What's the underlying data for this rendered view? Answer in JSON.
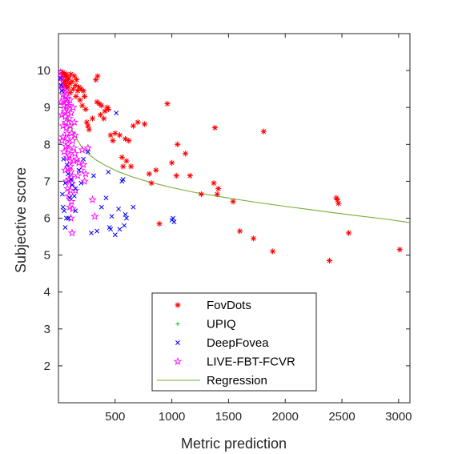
{
  "chart_data": {
    "type": "scatter",
    "title": "",
    "xlabel": "Metric prediction",
    "ylabel": "Subjective score",
    "xlim": [
      0,
      3100
    ],
    "ylim": [
      1,
      11
    ],
    "xticks": [
      500,
      1000,
      1500,
      2000,
      2500,
      3000
    ],
    "yticks": [
      2,
      3,
      4,
      5,
      6,
      7,
      8,
      9,
      10
    ],
    "grid": false,
    "legend_position": "bottom-center",
    "series": [
      {
        "name": "FovDots",
        "marker": "asterisk",
        "color": "#ff0000",
        "points": [
          [
            40,
            9.95
          ],
          [
            50,
            9.9
          ],
          [
            55,
            9.7
          ],
          [
            60,
            9.85
          ],
          [
            65,
            9.6
          ],
          [
            70,
            9.9
          ],
          [
            80,
            9.75
          ],
          [
            85,
            9.55
          ],
          [
            90,
            9.8
          ],
          [
            100,
            9.65
          ],
          [
            105,
            9.4
          ],
          [
            110,
            9.9
          ],
          [
            120,
            9.7
          ],
          [
            130,
            9.5
          ],
          [
            140,
            9.85
          ],
          [
            150,
            9.6
          ],
          [
            155,
            9.3
          ],
          [
            160,
            9.75
          ],
          [
            170,
            9.45
          ],
          [
            180,
            9.55
          ],
          [
            190,
            9.2
          ],
          [
            200,
            9.5
          ],
          [
            210,
            9.05
          ],
          [
            220,
            9.45
          ],
          [
            230,
            9.3
          ],
          [
            240,
            8.95
          ],
          [
            250,
            8.6
          ],
          [
            260,
            8.5
          ],
          [
            270,
            8.4
          ],
          [
            300,
            8.7
          ],
          [
            330,
            9.75
          ],
          [
            340,
            9.15
          ],
          [
            345,
            9.85
          ],
          [
            360,
            9.1
          ],
          [
            370,
            8.8
          ],
          [
            380,
            9.05
          ],
          [
            400,
            8.7
          ],
          [
            410,
            8.9
          ],
          [
            430,
            9.0
          ],
          [
            440,
            8.95
          ],
          [
            460,
            8.25
          ],
          [
            480,
            8.1
          ],
          [
            500,
            8.3
          ],
          [
            540,
            8.25
          ],
          [
            560,
            7.65
          ],
          [
            570,
            7.4
          ],
          [
            590,
            8.15
          ],
          [
            600,
            7.55
          ],
          [
            620,
            8.1
          ],
          [
            640,
            7.4
          ],
          [
            660,
            8.5
          ],
          [
            700,
            8.6
          ],
          [
            760,
            8.55
          ],
          [
            800,
            7.2
          ],
          [
            820,
            6.95
          ],
          [
            860,
            7.3
          ],
          [
            890,
            5.85
          ],
          [
            960,
            9.1
          ],
          [
            1000,
            7.5
          ],
          [
            1040,
            7.15
          ],
          [
            1050,
            8.0
          ],
          [
            1120,
            7.75
          ],
          [
            1160,
            7.15
          ],
          [
            1260,
            6.65
          ],
          [
            1370,
            6.95
          ],
          [
            1380,
            8.45
          ],
          [
            1400,
            6.65
          ],
          [
            1410,
            6.8
          ],
          [
            1540,
            6.45
          ],
          [
            1600,
            5.65
          ],
          [
            1720,
            5.45
          ],
          [
            1810,
            8.35
          ],
          [
            1890,
            5.1
          ],
          [
            2390,
            4.85
          ],
          [
            2450,
            6.55
          ],
          [
            2470,
            6.4
          ],
          [
            2560,
            5.6
          ],
          [
            3010,
            5.15
          ],
          [
            2460,
            6.5
          ]
        ]
      },
      {
        "name": "UPIQ",
        "marker": "plus",
        "color": "#00cc00",
        "points": []
      },
      {
        "name": "DeepFovea",
        "marker": "x",
        "color": "#0000ff",
        "points": [
          [
            20,
            9.8
          ],
          [
            25,
            9.6
          ],
          [
            30,
            9.45
          ],
          [
            35,
            6.65
          ],
          [
            45,
            7.6
          ],
          [
            50,
            6.2
          ],
          [
            60,
            6.95
          ],
          [
            70,
            6.0
          ],
          [
            75,
            7.45
          ],
          [
            90,
            6.0
          ],
          [
            100,
            6.55
          ],
          [
            110,
            7.05
          ],
          [
            120,
            6.9
          ],
          [
            140,
            6.6
          ],
          [
            150,
            6.2
          ],
          [
            180,
            7.3
          ],
          [
            200,
            6.95
          ],
          [
            220,
            7.6
          ],
          [
            260,
            7.8
          ],
          [
            290,
            5.6
          ],
          [
            310,
            7.15
          ],
          [
            340,
            5.65
          ],
          [
            380,
            6.3
          ],
          [
            420,
            6.55
          ],
          [
            440,
            7.25
          ],
          [
            450,
            5.75
          ],
          [
            460,
            5.7
          ],
          [
            470,
            6.05
          ],
          [
            500,
            5.55
          ],
          [
            510,
            8.85
          ],
          [
            530,
            6.25
          ],
          [
            540,
            5.7
          ],
          [
            560,
            7.0
          ],
          [
            570,
            7.05
          ],
          [
            580,
            5.8
          ],
          [
            590,
            6.1
          ],
          [
            600,
            6.0
          ],
          [
            660,
            6.3
          ],
          [
            1000,
            5.95
          ],
          [
            1010,
            6.0
          ],
          [
            1020,
            5.9
          ],
          [
            150,
            6.8
          ],
          [
            60,
            5.75
          ],
          [
            40,
            6.3
          ],
          [
            85,
            7.2
          ]
        ]
      },
      {
        "name": "LIVE-FBT-FCVR",
        "marker": "pentagram",
        "color": "#ff00ff",
        "points": [
          [
            20,
            9.95
          ],
          [
            25,
            9.8
          ],
          [
            30,
            9.6
          ],
          [
            35,
            9.5
          ],
          [
            40,
            9.35
          ],
          [
            45,
            9.2
          ],
          [
            50,
            9.05
          ],
          [
            55,
            8.9
          ],
          [
            60,
            8.75
          ],
          [
            65,
            8.6
          ],
          [
            70,
            8.45
          ],
          [
            75,
            8.3
          ],
          [
            80,
            8.15
          ],
          [
            85,
            8.0
          ],
          [
            90,
            7.85
          ],
          [
            95,
            7.7
          ],
          [
            100,
            7.55
          ],
          [
            105,
            7.4
          ],
          [
            110,
            7.25
          ],
          [
            115,
            7.1
          ],
          [
            120,
            6.95
          ],
          [
            30,
            8.8
          ],
          [
            40,
            8.2
          ],
          [
            50,
            7.8
          ],
          [
            60,
            7.3
          ],
          [
            70,
            7.0
          ],
          [
            80,
            6.8
          ],
          [
            90,
            6.6
          ],
          [
            100,
            6.3
          ],
          [
            110,
            6.0
          ],
          [
            120,
            5.6
          ],
          [
            35,
            9.9
          ],
          [
            45,
            9.7
          ],
          [
            55,
            9.5
          ],
          [
            65,
            9.3
          ],
          [
            75,
            9.1
          ],
          [
            85,
            8.9
          ],
          [
            95,
            8.7
          ],
          [
            105,
            8.5
          ],
          [
            115,
            8.3
          ],
          [
            125,
            8.1
          ],
          [
            135,
            7.9
          ],
          [
            145,
            7.75
          ],
          [
            160,
            7.6
          ],
          [
            180,
            7.5
          ],
          [
            200,
            7.3
          ],
          [
            220,
            7.45
          ],
          [
            240,
            7.2
          ],
          [
            260,
            7.9
          ],
          [
            300,
            6.5
          ],
          [
            320,
            6.05
          ],
          [
            210,
            7.85
          ],
          [
            230,
            7.0
          ],
          [
            150,
            6.75
          ],
          [
            170,
            7.15
          ],
          [
            130,
            9.0
          ],
          [
            140,
            8.6
          ],
          [
            100,
            9.2
          ],
          [
            110,
            8.85
          ],
          [
            50,
            9.85
          ],
          [
            60,
            9.65
          ],
          [
            70,
            9.45
          ],
          [
            80,
            9.25
          ],
          [
            90,
            9.05
          ],
          [
            40,
            8.5
          ],
          [
            30,
            8.1
          ],
          [
            25,
            9.15
          ],
          [
            65,
            7.95
          ],
          [
            75,
            7.65
          ],
          [
            85,
            7.35
          ],
          [
            95,
            7.05
          ],
          [
            105,
            6.75
          ],
          [
            115,
            6.45
          ],
          [
            125,
            6.25
          ],
          [
            135,
            7.55
          ],
          [
            145,
            8.25
          ]
        ]
      },
      {
        "name": "Regression",
        "marker": "line",
        "color": "#77ac30",
        "x": [
          20,
          60,
          100,
          150,
          200,
          260,
          330,
          420,
          520,
          650,
          800,
          1000,
          1200,
          1450,
          1700,
          2000,
          2300,
          2600,
          2900,
          3100
        ],
        "y": [
          9.8,
          9.0,
          8.55,
          8.2,
          7.95,
          7.75,
          7.58,
          7.42,
          7.27,
          7.12,
          6.98,
          6.83,
          6.7,
          6.57,
          6.45,
          6.32,
          6.2,
          6.08,
          5.97,
          5.88
        ]
      }
    ]
  }
}
